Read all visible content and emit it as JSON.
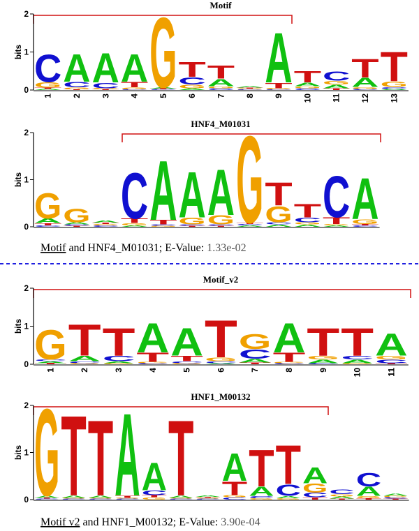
{
  "chart_data": [
    {
      "type": "logo",
      "title": "Motif",
      "ylabel": "bits",
      "ylim": [
        0,
        2
      ],
      "yticks": [
        0,
        1,
        2
      ],
      "categories": [
        "1",
        "2",
        "3",
        "4",
        "5",
        "6",
        "7",
        "8",
        "9",
        "10",
        "11",
        "12",
        "13"
      ],
      "series": [
        {
          "name": "A",
          "color": "#10c010",
          "values": [
            0.03,
            0.75,
            0.8,
            0.75,
            0.03,
            0.05,
            0.2,
            0.03,
            1.35,
            0.1,
            0.1,
            0.25,
            0.03
          ]
        },
        {
          "name": "C",
          "color": "#1010d0",
          "values": [
            0.75,
            0.15,
            0.15,
            0.02,
            0.02,
            0.2,
            0.05,
            0.02,
            0.02,
            0.05,
            0.25,
            0.03,
            0.05
          ]
        },
        {
          "name": "G",
          "color": "#f0a000",
          "values": [
            0.15,
            0.05,
            0.03,
            0.05,
            1.9,
            0.1,
            0.05,
            0.02,
            0.03,
            0.05,
            0.1,
            0.05,
            0.15
          ]
        },
        {
          "name": "T",
          "color": "#d01010",
          "values": [
            0.03,
            0.02,
            0.02,
            0.15,
            0.02,
            0.4,
            0.35,
            0.02,
            0.15,
            0.3,
            0.05,
            0.5,
            0.8
          ]
        }
      ]
    },
    {
      "type": "logo",
      "title": "HNF4_M01031",
      "ylabel": "bits",
      "ylim": [
        0,
        2
      ],
      "yticks": [
        0,
        1,
        2
      ],
      "series": [
        {
          "name": "A",
          "color": "#10c010",
          "values": [
            0.1,
            0.05,
            0.05,
            0.03,
            1.3,
            1.0,
            1.0,
            0.03,
            0.05,
            0.05,
            0.03,
            0.9
          ]
        },
        {
          "name": "C",
          "color": "#1010d0",
          "values": [
            0.03,
            0.03,
            0.03,
            1.0,
            0.03,
            0.03,
            0.03,
            0.03,
            0.05,
            0.1,
            0.9,
            0.03
          ]
        },
        {
          "name": "G",
          "color": "#f0a000",
          "values": [
            0.55,
            0.3,
            0.03,
            0.05,
            0.02,
            0.15,
            0.2,
            1.9,
            0.35,
            0.05,
            0.03,
            0.1
          ]
        },
        {
          "name": "T",
          "color": "#d01010",
          "values": [
            0.05,
            0.02,
            0.03,
            0.1,
            0.1,
            0.02,
            0.02,
            0.03,
            0.5,
            0.3,
            0.15,
            0.03
          ]
        }
      ]
    },
    {
      "type": "logo",
      "title": "Motif_v2",
      "ylabel": "bits",
      "ylim": [
        0,
        2
      ],
      "yticks": [
        0,
        1,
        2
      ],
      "categories": [
        "1",
        "2",
        "3",
        "4",
        "5",
        "6",
        "7",
        "8",
        "9",
        "10",
        "11"
      ],
      "series": [
        {
          "name": "A",
          "color": "#10c010",
          "values": [
            0.05,
            0.15,
            0.05,
            0.8,
            0.75,
            0.03,
            0.1,
            0.8,
            0.1,
            0.1,
            0.6
          ]
        },
        {
          "name": "C",
          "color": "#1010d0",
          "values": [
            0.05,
            0.05,
            0.15,
            0.03,
            0.05,
            0.05,
            0.25,
            0.03,
            0.03,
            0.1,
            0.1
          ]
        },
        {
          "name": "G",
          "color": "#f0a000",
          "values": [
            0.8,
            0.03,
            0.03,
            0.03,
            0.03,
            0.1,
            0.4,
            0.03,
            0.1,
            0.03,
            0.1
          ]
        },
        {
          "name": "T",
          "color": "#d01010",
          "values": [
            0.03,
            0.85,
            0.75,
            0.25,
            0.15,
            1.0,
            0.05,
            0.25,
            0.75,
            0.75,
            0.03
          ]
        }
      ]
    },
    {
      "type": "logo",
      "title": "HNF1_M00132",
      "ylabel": "bits",
      "ylim": [
        0,
        2
      ],
      "yticks": [
        0,
        1,
        2
      ],
      "series": [
        {
          "name": "A",
          "color": "#10c010",
          "values": [
            0.05,
            0.05,
            0.05,
            1.8,
            0.6,
            0.05,
            0.03,
            0.6,
            0.2,
            0.05,
            0.35,
            0.05,
            0.2,
            0.05
          ]
        },
        {
          "name": "C",
          "color": "#1010d0",
          "values": [
            0.02,
            0.02,
            0.02,
            0.02,
            0.1,
            0.02,
            0.02,
            0.05,
            0.05,
            0.25,
            0.1,
            0.1,
            0.3,
            0.03
          ]
        },
        {
          "name": "G",
          "color": "#f0a000",
          "values": [
            1.9,
            0.02,
            0.02,
            0.02,
            0.05,
            0.02,
            0.02,
            0.05,
            0.03,
            0.03,
            0.2,
            0.05,
            0.05,
            0.03
          ]
        },
        {
          "name": "T",
          "color": "#d01010",
          "values": [
            0.02,
            1.75,
            1.65,
            0.05,
            0.05,
            1.65,
            0.02,
            0.3,
            0.8,
            0.85,
            0.05,
            0.02,
            0.03,
            0.02
          ]
        }
      ]
    }
  ],
  "captions": [
    {
      "link": "Motif",
      "text": "and HNF4_M01031; E-Value:",
      "evalue": "1.33e-02"
    },
    {
      "link": "Motif v2",
      "text": "and HNF1_M00132; E-Value:",
      "evalue": "3.90e-04"
    }
  ]
}
